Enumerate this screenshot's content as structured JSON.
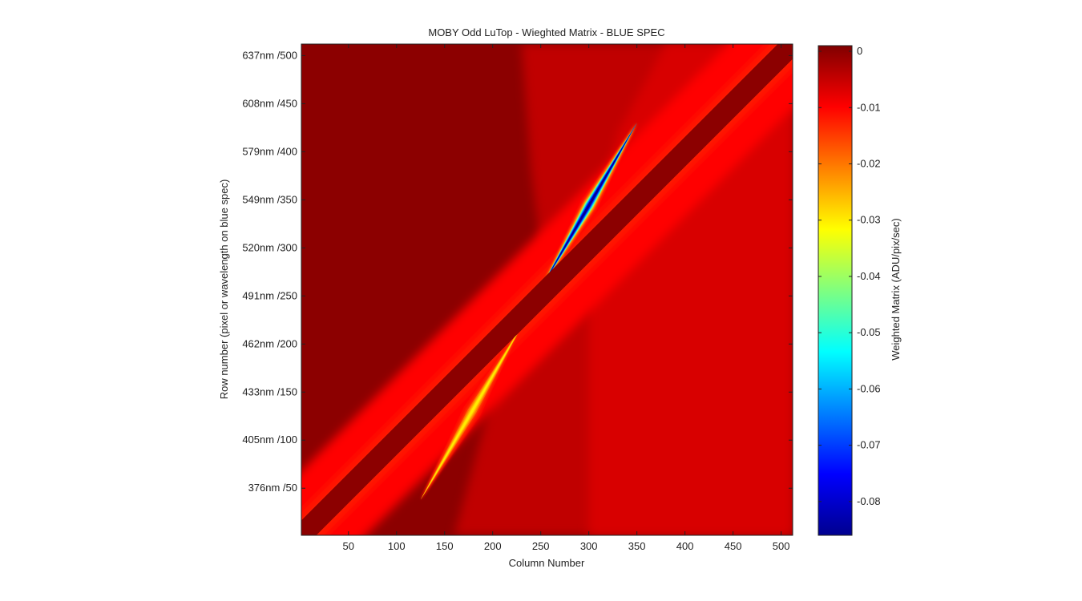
{
  "chart_data": {
    "type": "heatmap",
    "title": "MOBY Odd LuTop - Wieghted Matrix - BLUE SPEC",
    "xlabel": "Column Number",
    "ylabel": "Row number (pixel or wavelength on blue spec)",
    "colorbar_label": "Weighted Matrix (ADU/pix/sec)",
    "colormap": "jet",
    "xlim": [
      1,
      512
    ],
    "ylim": [
      1,
      512
    ],
    "clim": [
      -0.086,
      0.001
    ],
    "x_ticks": [
      50,
      100,
      150,
      200,
      250,
      300,
      350,
      400,
      450,
      500
    ],
    "x_tick_labels": [
      "50",
      "100",
      "150",
      "200",
      "250",
      "300",
      "350",
      "400",
      "450",
      "500"
    ],
    "y_ticks": [
      50,
      100,
      150,
      200,
      250,
      300,
      350,
      400,
      450,
      500
    ],
    "y_tick_labels": [
      "376nm /50",
      "405nm /100",
      "433nm /150",
      "462nm /200",
      "491nm /250",
      "520nm /300",
      "549nm /350",
      "579nm /400",
      "608nm /450",
      "637nm /500"
    ],
    "colorbar_ticks": [
      0,
      -0.01,
      -0.02,
      -0.03,
      -0.04,
      -0.05,
      -0.06,
      -0.07,
      -0.08
    ],
    "colorbar_tick_labels": [
      "0",
      "-0.01",
      "-0.02",
      "-0.03",
      "-0.04",
      "-0.05",
      "-0.06",
      "-0.07",
      "-0.08"
    ],
    "grid": false,
    "legend": "colorbar-right",
    "features": {
      "background_value": 0.0,
      "diagonal_band": {
        "value": 0.0,
        "from": [
          1,
          1
        ],
        "to": [
          512,
          512
        ]
      },
      "diagonal_halo": {
        "value": -0.01,
        "from": [
          1,
          1
        ],
        "to": [
          512,
          512
        ]
      },
      "upper_streak": {
        "min_value": -0.085,
        "from": [
          250,
          258
        ],
        "to": [
          350,
          430
        ]
      },
      "lower_streak": {
        "min_value": -0.03,
        "from": [
          125,
          38
        ],
        "to": [
          232,
          222
        ]
      }
    }
  }
}
